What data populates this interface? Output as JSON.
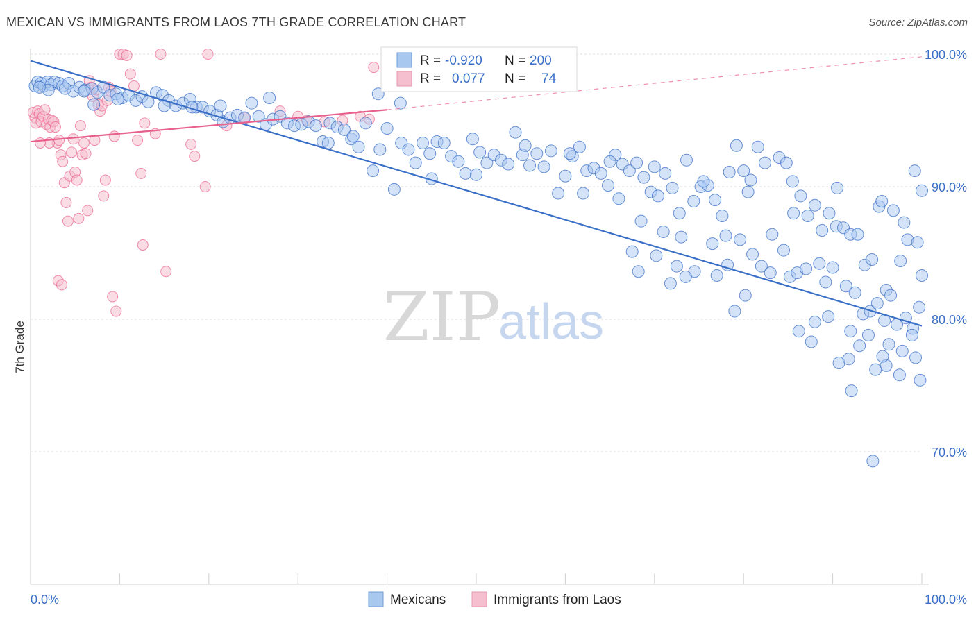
{
  "title": "MEXICAN VS IMMIGRANTS FROM LAOS 7TH GRADE CORRELATION CHART",
  "source": "Source: ZipAtlas.com",
  "watermark": {
    "zip": "ZIP",
    "atlas": "atlas"
  },
  "colors": {
    "blue": "#3a6fc7",
    "blue_fill": "#a9c8f0",
    "pink": "#e8608c",
    "pink_fill": "#f6bfd0",
    "grid": "#dddddd"
  },
  "legend": {
    "rows": [
      {
        "r_label": "R =",
        "r_value": "-0.920",
        "n_label": "N =",
        "n_value": "200"
      },
      {
        "r_label": "R =",
        "r_value": "0.077",
        "n_label": "N =",
        "n_value": "74"
      }
    ]
  },
  "bottom_legend": [
    "Mexicans",
    "Immigrants from Laos"
  ],
  "chart_data": {
    "type": "scatter",
    "title": "MEXICAN VS IMMIGRANTS FROM LAOS 7TH GRADE CORRELATION CHART",
    "xlabel": "",
    "ylabel": "7th Grade",
    "xlim": [
      0,
      100
    ],
    "ylim": [
      60,
      100
    ],
    "x_tick_labels": [
      "0.0%",
      "100.0%"
    ],
    "y_tick_labels": [
      "100.0%",
      "90.0%",
      "80.0%",
      "70.0%"
    ],
    "y_ticks": [
      100,
      90,
      80,
      70
    ],
    "grid": true,
    "legend_position": "top-center",
    "series": [
      {
        "name": "Mexicans",
        "color": "#3a6fc7",
        "trend": {
          "x": [
            0,
            100
          ],
          "y": [
            99.5,
            79.5
          ]
        },
        "points": [
          [
            0.5,
            97.6
          ],
          [
            0.8,
            97.9
          ],
          [
            1.2,
            97.8
          ],
          [
            1.5,
            97.6
          ],
          [
            1.9,
            97.9
          ],
          [
            2.3,
            97.7
          ],
          [
            2.7,
            97.9
          ],
          [
            3.2,
            97.8
          ],
          [
            3.6,
            97.6
          ],
          [
            4.3,
            97.8
          ],
          [
            4.8,
            97.2
          ],
          [
            5.5,
            97.5
          ],
          [
            6.1,
            97.3
          ],
          [
            6.9,
            97.4
          ],
          [
            7.5,
            97.1
          ],
          [
            8.2,
            97.5
          ],
          [
            8.9,
            96.9
          ],
          [
            9.6,
            97.0
          ],
          [
            10.3,
            96.7
          ],
          [
            11.0,
            96.9
          ],
          [
            11.8,
            96.5
          ],
          [
            12.5,
            96.8
          ],
          [
            13.2,
            96.4
          ],
          [
            14.1,
            97.1
          ],
          [
            14.8,
            96.9
          ],
          [
            15.5,
            96.5
          ],
          [
            16.3,
            96.1
          ],
          [
            17.1,
            96.3
          ],
          [
            17.9,
            96.6
          ],
          [
            18.6,
            96.0
          ],
          [
            19.3,
            96.0
          ],
          [
            20.1,
            95.7
          ],
          [
            20.9,
            95.4
          ],
          [
            21.6,
            94.9
          ],
          [
            22.4,
            95.2
          ],
          [
            23.2,
            95.4
          ],
          [
            24.0,
            95.2
          ],
          [
            24.8,
            96.3
          ],
          [
            25.6,
            95.3
          ],
          [
            26.4,
            94.7
          ],
          [
            27.2,
            95.1
          ],
          [
            28.0,
            95.3
          ],
          [
            28.8,
            94.8
          ],
          [
            29.6,
            94.6
          ],
          [
            30.4,
            94.7
          ],
          [
            31.2,
            94.9
          ],
          [
            32.0,
            94.6
          ],
          [
            32.8,
            93.4
          ],
          [
            33.6,
            94.8
          ],
          [
            34.4,
            94.5
          ],
          [
            35.2,
            94.3
          ],
          [
            36.0,
            93.6
          ],
          [
            36.8,
            93.0
          ],
          [
            37.6,
            94.8
          ],
          [
            38.4,
            91.2
          ],
          [
            39.2,
            92.8
          ],
          [
            40.0,
            94.4
          ],
          [
            40.8,
            89.8
          ],
          [
            41.6,
            93.3
          ],
          [
            42.4,
            92.8
          ],
          [
            43.2,
            91.8
          ],
          [
            44.0,
            93.3
          ],
          [
            44.8,
            92.5
          ],
          [
            45.6,
            93.4
          ],
          [
            46.4,
            93.3
          ],
          [
            47.2,
            92.3
          ],
          [
            48.0,
            91.9
          ],
          [
            48.8,
            91.0
          ],
          [
            49.6,
            93.6
          ],
          [
            50.4,
            92.6
          ],
          [
            51.2,
            91.8
          ],
          [
            52.0,
            92.4
          ],
          [
            52.8,
            92.0
          ],
          [
            53.6,
            91.7
          ],
          [
            54.4,
            94.1
          ],
          [
            55.2,
            92.4
          ],
          [
            56.0,
            91.6
          ],
          [
            56.8,
            92.5
          ],
          [
            57.6,
            91.5
          ],
          [
            58.4,
            92.7
          ],
          [
            59.2,
            89.5
          ],
          [
            60.0,
            90.8
          ],
          [
            60.8,
            92.3
          ],
          [
            61.6,
            93.0
          ],
          [
            62.4,
            91.2
          ],
          [
            63.2,
            91.4
          ],
          [
            64.0,
            91.0
          ],
          [
            64.8,
            90.1
          ],
          [
            65.6,
            92.4
          ],
          [
            66.4,
            91.7
          ],
          [
            67.2,
            91.2
          ],
          [
            68.0,
            91.8
          ],
          [
            68.8,
            90.7
          ],
          [
            69.6,
            89.6
          ],
          [
            70.4,
            89.3
          ],
          [
            71.2,
            91.0
          ],
          [
            72.0,
            89.9
          ],
          [
            72.8,
            88.0
          ],
          [
            73.6,
            92.0
          ],
          [
            74.4,
            88.9
          ],
          [
            75.2,
            90.0
          ],
          [
            76.0,
            90.1
          ],
          [
            76.8,
            89.0
          ],
          [
            77.6,
            87.8
          ],
          [
            78.4,
            91.1
          ],
          [
            79.2,
            93.1
          ],
          [
            80.0,
            91.2
          ],
          [
            80.8,
            90.5
          ],
          [
            81.6,
            93.0
          ],
          [
            82.4,
            91.8
          ],
          [
            83.2,
            86.4
          ],
          [
            84.0,
            92.2
          ],
          [
            84.8,
            91.8
          ],
          [
            85.6,
            88.0
          ],
          [
            86.4,
            89.3
          ],
          [
            87.2,
            87.8
          ],
          [
            88.0,
            88.6
          ],
          [
            88.8,
            86.7
          ],
          [
            89.6,
            88.0
          ],
          [
            90.4,
            87.0
          ],
          [
            91.2,
            86.9
          ],
          [
            92.0,
            86.4
          ],
          [
            92.8,
            86.4
          ],
          [
            93.6,
            84.1
          ],
          [
            94.4,
            84.5
          ],
          [
            95.2,
            88.5
          ],
          [
            96.0,
            82.2
          ],
          [
            96.8,
            88.2
          ],
          [
            97.6,
            84.4
          ],
          [
            98.4,
            86.0
          ],
          [
            99.2,
            91.2
          ],
          [
            100.0,
            89.7
          ],
          [
            39.0,
            97.0
          ],
          [
            41.5,
            96.3
          ],
          [
            36.2,
            93.8
          ],
          [
            33.4,
            93.3
          ],
          [
            26.8,
            96.7
          ],
          [
            21.3,
            96.1
          ],
          [
            18.1,
            96.0
          ],
          [
            15.0,
            96.1
          ],
          [
            9.8,
            96.6
          ],
          [
            7.1,
            96.2
          ],
          [
            6.0,
            97.2
          ],
          [
            3.9,
            97.4
          ],
          [
            2.0,
            97.3
          ],
          [
            1.0,
            97.5
          ],
          [
            45.0,
            90.6
          ],
          [
            50.0,
            90.9
          ],
          [
            55.5,
            93.1
          ],
          [
            60.5,
            92.5
          ],
          [
            65.0,
            91.9
          ],
          [
            70.0,
            91.5
          ],
          [
            75.5,
            90.4
          ],
          [
            80.5,
            89.6
          ],
          [
            85.5,
            90.4
          ],
          [
            90.5,
            89.9
          ],
          [
            95.5,
            88.9
          ],
          [
            98.0,
            87.3
          ],
          [
            99.5,
            85.8
          ],
          [
            100.0,
            83.3
          ],
          [
            62.0,
            89.5
          ],
          [
            66.0,
            89.1
          ],
          [
            68.5,
            87.4
          ],
          [
            71.0,
            86.6
          ],
          [
            73.0,
            86.2
          ],
          [
            76.5,
            85.7
          ],
          [
            78.0,
            86.3
          ],
          [
            79.6,
            86.0
          ],
          [
            81.0,
            84.9
          ],
          [
            82.0,
            84.0
          ],
          [
            83.0,
            83.5
          ],
          [
            84.5,
            85.2
          ],
          [
            85.2,
            83.2
          ],
          [
            86.0,
            83.5
          ],
          [
            87.0,
            83.8
          ],
          [
            88.5,
            84.2
          ],
          [
            89.2,
            82.8
          ],
          [
            90.0,
            83.9
          ],
          [
            91.5,
            82.5
          ],
          [
            92.5,
            82.0
          ],
          [
            93.4,
            80.4
          ],
          [
            94.2,
            80.6
          ],
          [
            95.0,
            81.2
          ],
          [
            96.5,
            81.8
          ],
          [
            97.2,
            79.6
          ],
          [
            98.2,
            80.1
          ],
          [
            99.0,
            79.3
          ],
          [
            99.7,
            80.9
          ],
          [
            88.0,
            79.8
          ],
          [
            89.5,
            80.2
          ],
          [
            92.0,
            79.1
          ],
          [
            93.0,
            78.0
          ],
          [
            94.0,
            78.8
          ],
          [
            95.8,
            79.9
          ],
          [
            96.3,
            78.1
          ],
          [
            97.8,
            77.6
          ],
          [
            98.9,
            78.8
          ],
          [
            99.3,
            77.1
          ],
          [
            96.0,
            76.5
          ],
          [
            97.5,
            75.8
          ],
          [
            99.8,
            75.4
          ],
          [
            92.1,
            74.6
          ],
          [
            94.8,
            76.2
          ],
          [
            90.7,
            76.7
          ],
          [
            91.8,
            77.0
          ],
          [
            94.5,
            69.3
          ],
          [
            95.6,
            77.2
          ],
          [
            86.2,
            79.1
          ],
          [
            87.6,
            78.3
          ],
          [
            79.0,
            80.6
          ],
          [
            80.2,
            81.8
          ],
          [
            78.2,
            84.1
          ],
          [
            77.0,
            83.3
          ],
          [
            74.5,
            83.6
          ],
          [
            73.5,
            83.2
          ],
          [
            72.5,
            84.0
          ],
          [
            70.2,
            84.8
          ],
          [
            71.8,
            82.7
          ],
          [
            67.5,
            85.1
          ],
          [
            68.2,
            83.6
          ]
        ]
      },
      {
        "name": "Immigrants from Laos",
        "color": "#e8608c",
        "trend": {
          "x": [
            0,
            40
          ],
          "y": [
            93.4,
            95.8
          ]
        },
        "trend_dashed": {
          "x": [
            40,
            100
          ],
          "y": [
            95.8,
            99.8
          ]
        },
        "points": [
          [
            0.3,
            95.6
          ],
          [
            0.5,
            95.2
          ],
          [
            0.6,
            94.8
          ],
          [
            0.8,
            95.7
          ],
          [
            1.0,
            95.5
          ],
          [
            1.2,
            94.9
          ],
          [
            1.4,
            95.3
          ],
          [
            1.6,
            95.8
          ],
          [
            1.8,
            94.7
          ],
          [
            2.0,
            95.1
          ],
          [
            2.2,
            94.5
          ],
          [
            2.4,
            95.0
          ],
          [
            2.6,
            94.9
          ],
          [
            2.8,
            94.5
          ],
          [
            3.0,
            93.3
          ],
          [
            3.2,
            93.5
          ],
          [
            3.4,
            92.4
          ],
          [
            3.6,
            91.9
          ],
          [
            3.8,
            90.3
          ],
          [
            4.0,
            88.8
          ],
          [
            4.2,
            87.4
          ],
          [
            4.4,
            90.8
          ],
          [
            4.6,
            92.6
          ],
          [
            4.8,
            93.6
          ],
          [
            5.0,
            91.1
          ],
          [
            5.2,
            90.5
          ],
          [
            5.4,
            87.6
          ],
          [
            5.6,
            94.6
          ],
          [
            5.8,
            92.4
          ],
          [
            6.0,
            93.3
          ],
          [
            6.2,
            92.5
          ],
          [
            6.4,
            88.2
          ],
          [
            6.6,
            98.0
          ],
          [
            6.8,
            97.5
          ],
          [
            7.0,
            96.8
          ],
          [
            7.2,
            93.5
          ],
          [
            7.4,
            97.3
          ],
          [
            7.6,
            96.2
          ],
          [
            7.8,
            95.7
          ],
          [
            8.0,
            96.1
          ],
          [
            8.2,
            89.3
          ],
          [
            8.4,
            90.5
          ],
          [
            8.6,
            96.5
          ],
          [
            8.8,
            97.5
          ],
          [
            9.0,
            97.2
          ],
          [
            9.2,
            81.7
          ],
          [
            9.4,
            93.8
          ],
          [
            9.6,
            80.6
          ],
          [
            10.0,
            100.0
          ],
          [
            10.4,
            100.0
          ],
          [
            10.8,
            99.9
          ],
          [
            11.2,
            98.5
          ],
          [
            11.6,
            97.6
          ],
          [
            12.0,
            93.5
          ],
          [
            12.4,
            91.0
          ],
          [
            12.6,
            85.6
          ],
          [
            12.8,
            94.8
          ],
          [
            14.0,
            94.0
          ],
          [
            14.6,
            100.0
          ],
          [
            15.2,
            83.6
          ],
          [
            18.0,
            93.2
          ],
          [
            18.4,
            92.3
          ],
          [
            19.6,
            90.0
          ],
          [
            19.9,
            100.0
          ],
          [
            22.0,
            94.6
          ],
          [
            24.0,
            95.2
          ],
          [
            28.0,
            95.7
          ],
          [
            30.0,
            95.3
          ],
          [
            31.0,
            95.0
          ],
          [
            33.0,
            94.9
          ],
          [
            35.0,
            95.0
          ],
          [
            37.0,
            95.3
          ],
          [
            38.0,
            95.1
          ],
          [
            38.5,
            99.0
          ],
          [
            3.1,
            82.9
          ],
          [
            3.5,
            82.6
          ],
          [
            2.1,
            93.3
          ],
          [
            1.1,
            93.3
          ]
        ]
      }
    ]
  }
}
